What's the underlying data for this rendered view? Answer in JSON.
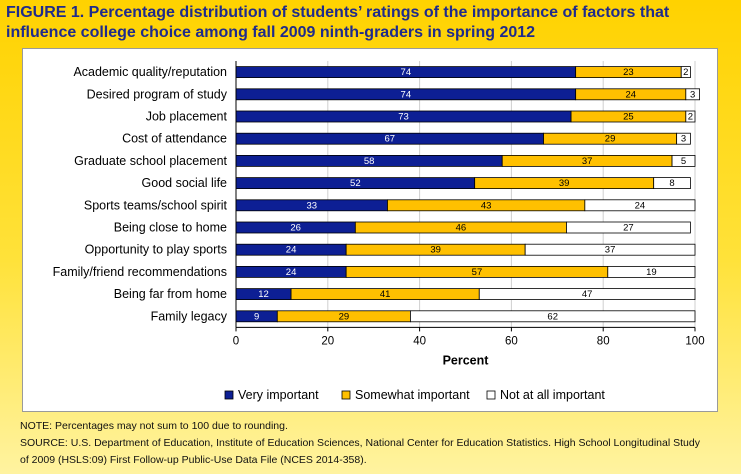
{
  "header": {
    "title_line1": "FIGURE 1. Percentage distribution of students’ ratings of the importance of factors that",
    "title_line2": "influence college choice among fall 2009 ninth-graders in spring 2012"
  },
  "chart_data": {
    "type": "bar",
    "orientation": "horizontal",
    "stacked": true,
    "categories": [
      "Academic quality/reputation",
      "Desired program of study",
      "Job placement",
      "Cost of attendance",
      "Graduate school placement",
      "Good social life",
      "Sports teams/school spirit",
      "Being close to home",
      "Opportunity to play sports",
      "Family/friend recommendations",
      "Being far from home",
      "Family legacy"
    ],
    "series": [
      {
        "name": "Very important",
        "color": "#0d1f94",
        "label_color": "#ffffff",
        "values": [
          74,
          74,
          73,
          67,
          58,
          52,
          33,
          26,
          24,
          24,
          12,
          9
        ]
      },
      {
        "name": "Somewhat important",
        "color": "#ffc000",
        "label_color": "#000000",
        "values": [
          23,
          24,
          25,
          29,
          37,
          39,
          43,
          46,
          39,
          57,
          41,
          29
        ]
      },
      {
        "name": "Not at all important",
        "color": "#ffffff",
        "label_color": "#000000",
        "values": [
          2,
          3,
          2,
          3,
          5,
          8,
          24,
          27,
          37,
          19,
          47,
          62
        ]
      }
    ],
    "xlabel": "Percent",
    "xlim": [
      0,
      100
    ],
    "xticks": [
      0,
      20,
      40,
      60,
      80,
      100
    ],
    "grid": "vertical",
    "legend": "bottom"
  },
  "notes": {
    "note": "NOTE: Percentages may not sum to 100 due to rounding.",
    "source_line1": "SOURCE: U.S. Department of Education, Institute of Education Sciences, National Center for Education Statistics. High School Longitudinal Study",
    "source_line2": "of 2009 (HSLS:09) First Follow-up Public-Use Data File (NCES 2014-358)."
  }
}
